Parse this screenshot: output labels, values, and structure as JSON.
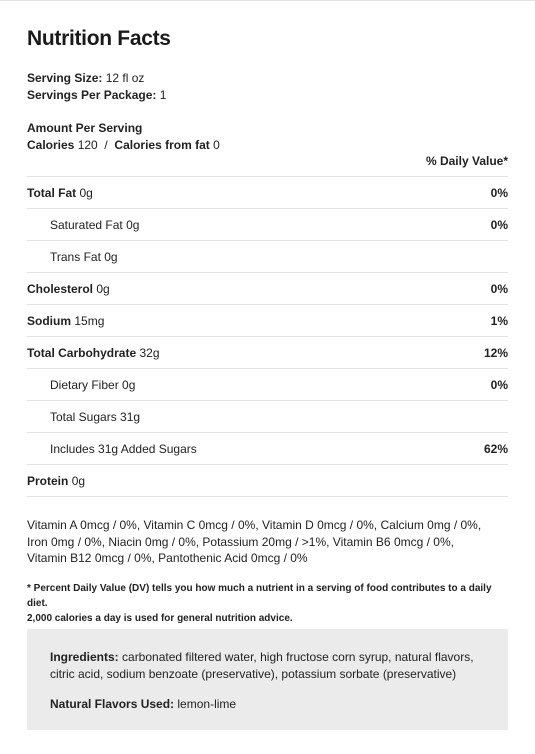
{
  "title": "Nutrition Facts",
  "serving": {
    "size_label": "Serving Size:",
    "size_value": "12 fl oz",
    "per_package_label": "Servings Per Package:",
    "per_package_value": "1"
  },
  "amount": {
    "header": "Amount Per Serving",
    "calories_label": "Calories",
    "calories_value": "120",
    "separator": "/",
    "fat_cal_label": "Calories from fat",
    "fat_cal_value": "0"
  },
  "daily_value_header": "% Daily Value*",
  "nutrients": [
    {
      "label": "Total Fat",
      "amount": "0g",
      "pct": "0%"
    },
    {
      "label": "Saturated Fat",
      "amount": "0g",
      "pct": "0%"
    },
    {
      "label": "Trans Fat",
      "amount": "0g",
      "pct": ""
    },
    {
      "label": "Cholesterol",
      "amount": "0g",
      "pct": "0%"
    },
    {
      "label": "Sodium",
      "amount": "15mg",
      "pct": "1%"
    },
    {
      "label": "Total Carbohydrate",
      "amount": "32g",
      "pct": "12%"
    },
    {
      "label": "Dietary Fiber",
      "amount": "0g",
      "pct": "0%"
    },
    {
      "label": "Total Sugars",
      "amount": "31g",
      "pct": ""
    },
    {
      "label": "Includes 31g Added Sugars",
      "amount": "",
      "pct": "62%"
    },
    {
      "label": "Protein",
      "amount": "0g",
      "pct": ""
    }
  ],
  "vitamins": {
    "line1": "Vitamin A 0mcg / 0%, Vitamin C 0mcg / 0%, Vitamin D 0mcg / 0%, Calcium 0mg / 0%,",
    "line2": "Iron 0mg / 0%, Niacin 0mg / 0%, Potassium 20mg / >1%, Vitamin B6 0mcg / 0%,",
    "line3": "Vitamin B12 0mcg / 0%, Pantothenic Acid 0mcg / 0%"
  },
  "footnote": {
    "line1": "* Percent Daily Value (DV) tells you how much a nutrient in a serving of food contributes to a daily diet.",
    "line2": "2,000 calories a day is used for general nutrition advice."
  },
  "ingredients": {
    "label": "Ingredients:",
    "line1": "carbonated filtered water, high fructose corn syrup, natural flavors,",
    "line2": "citric acid, sodium benzoate (preservative), potassium sorbate (preservative)",
    "natural_label": "Natural Flavors Used:",
    "natural_value": "lemon-lime"
  }
}
